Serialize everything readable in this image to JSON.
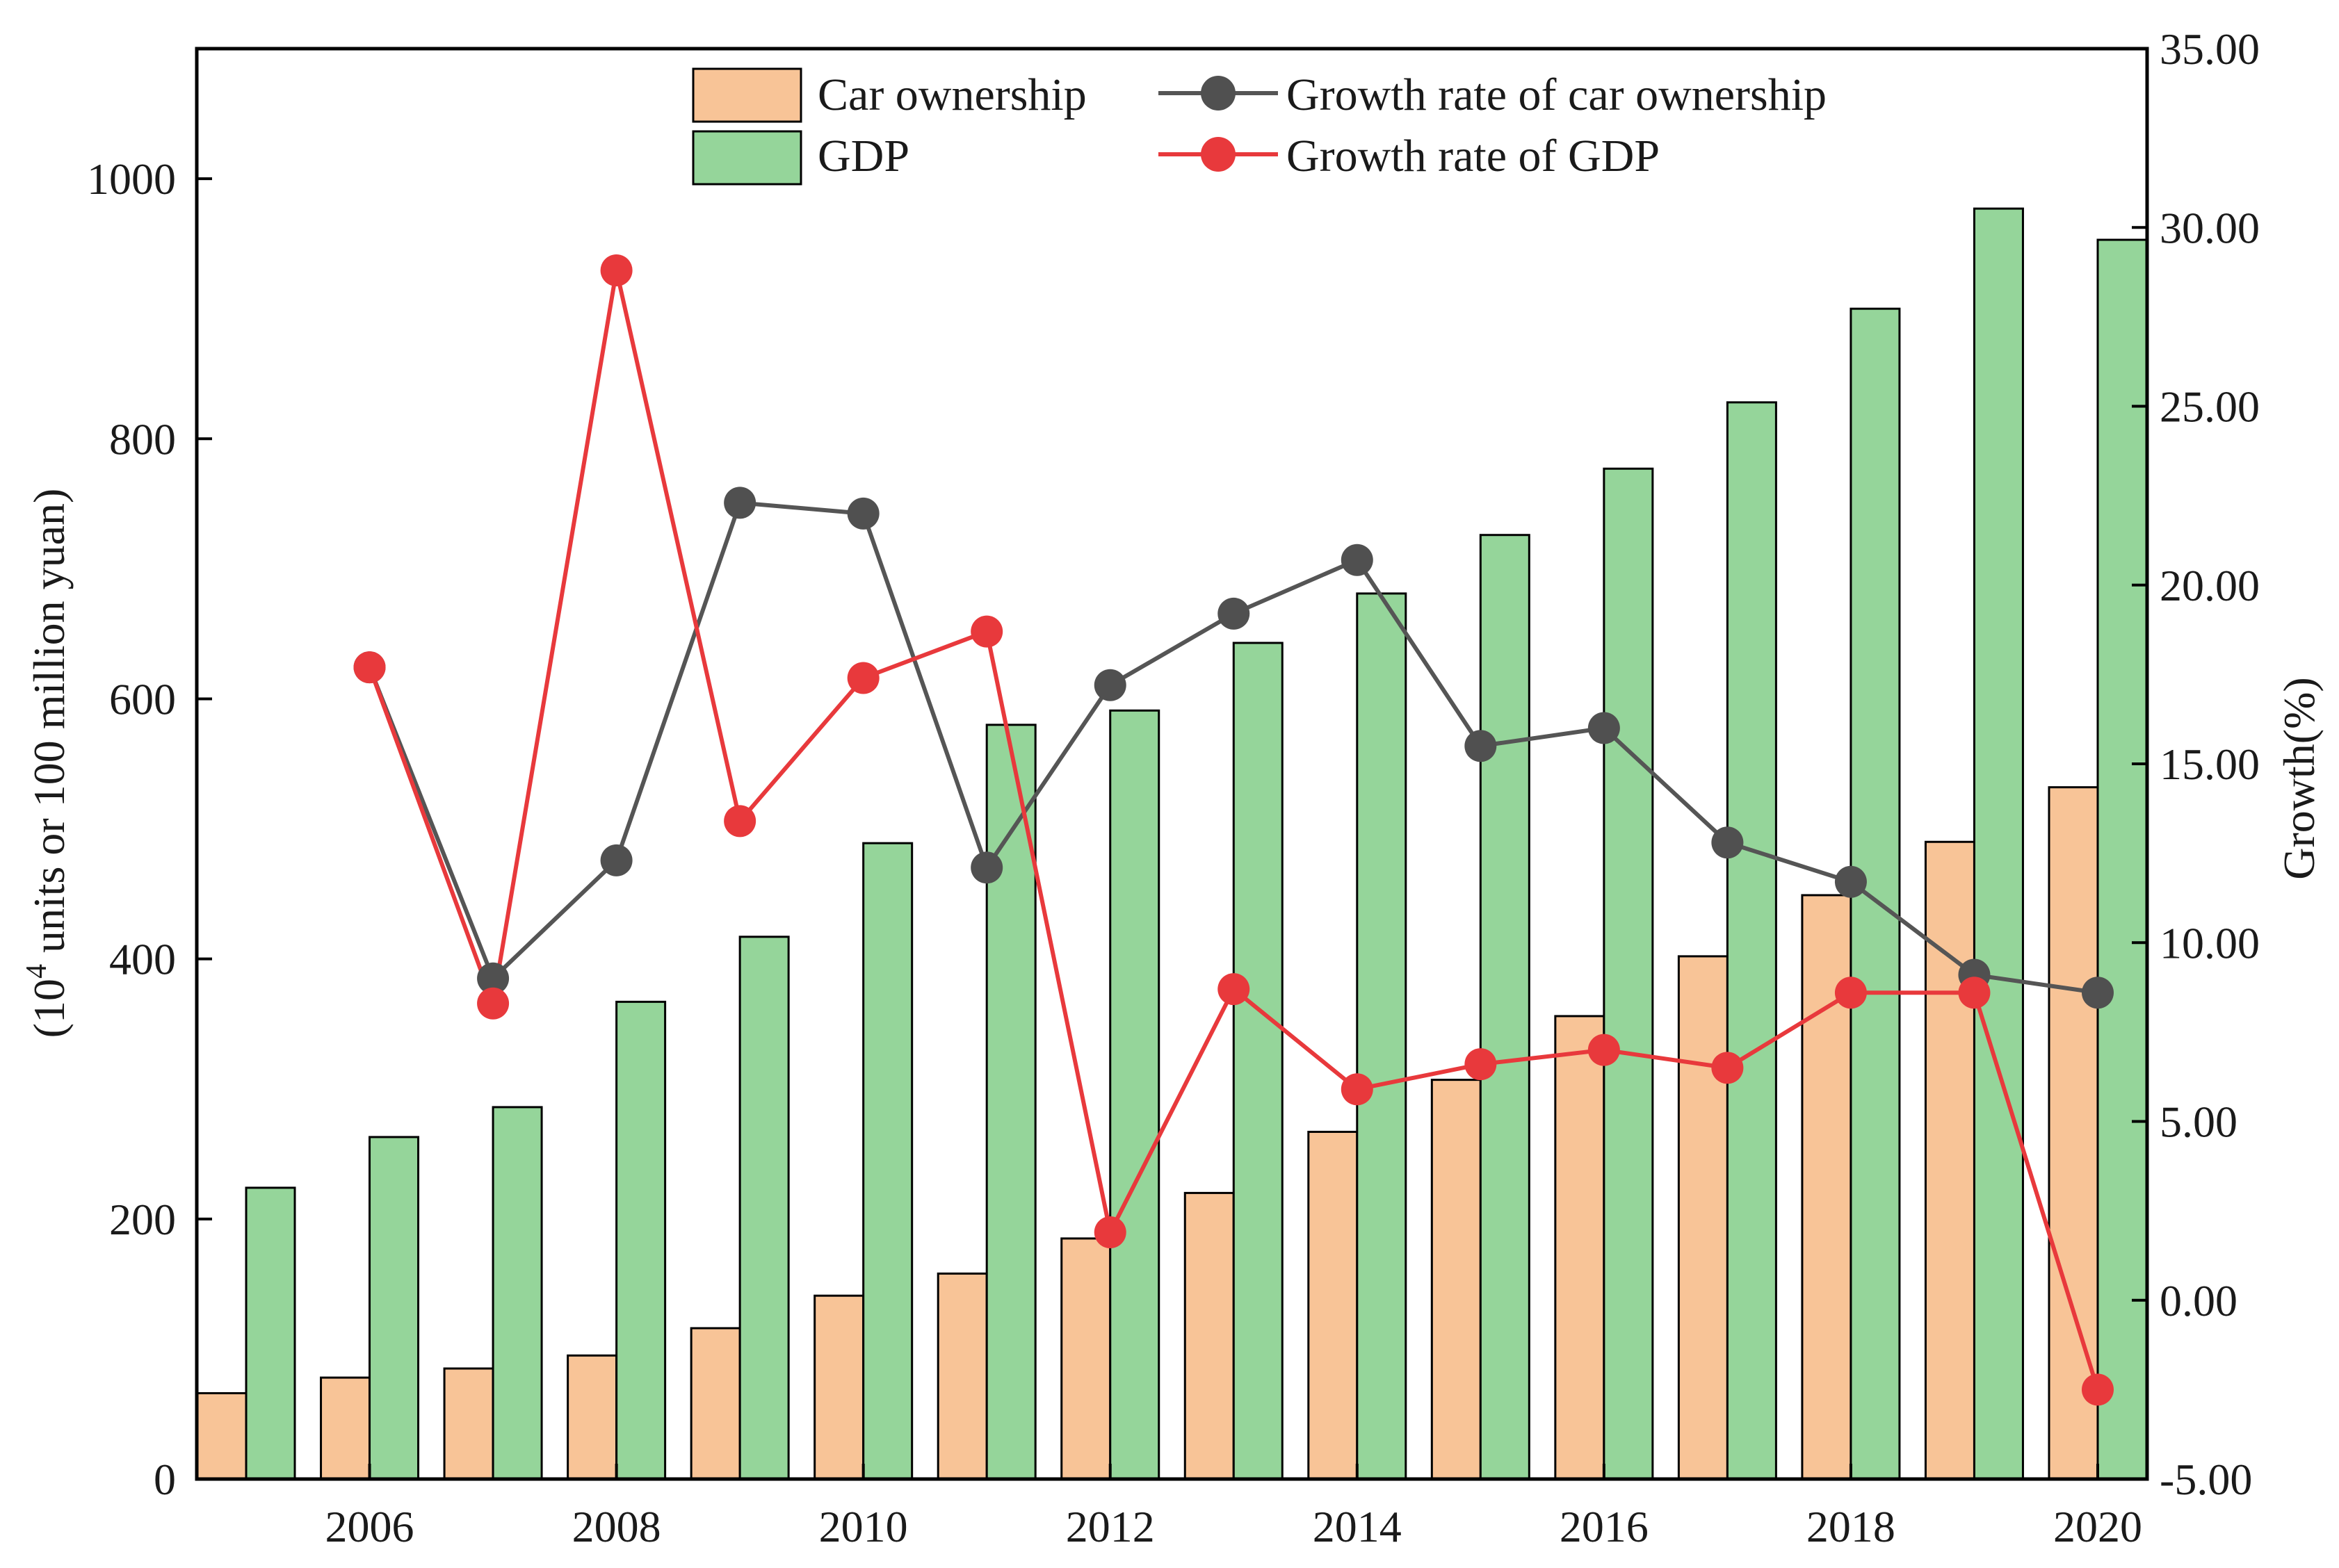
{
  "chart_data": {
    "type": "bar+line",
    "categories": [
      2005,
      2006,
      2007,
      2008,
      2009,
      2010,
      2011,
      2012,
      2013,
      2014,
      2015,
      2016,
      2017,
      2018,
      2019,
      2020
    ],
    "x_tick_labels": [
      "2006",
      "2008",
      "2010",
      "2012",
      "2014",
      "2016",
      "2018",
      "2020"
    ],
    "x_tick_values": [
      2006,
      2008,
      2010,
      2012,
      2014,
      2016,
      2018,
      2020
    ],
    "left_axis": {
      "label_base": "(10",
      "label_sup": "4",
      "label_rest": " units or 100 million yuan)",
      "range": [
        0,
        1100
      ],
      "ticks": [
        0,
        200,
        400,
        600,
        800,
        1000
      ],
      "tick_labels": [
        "0",
        "200",
        "400",
        "600",
        "800",
        "1000"
      ]
    },
    "right_axis": {
      "label": "Growth(%)",
      "range": [
        -5,
        35
      ],
      "ticks": [
        -5,
        0,
        5,
        10,
        15,
        20,
        25,
        30,
        35
      ],
      "tick_labels": [
        "-5.00",
        "0.00",
        "5.00",
        "10.00",
        "15.00",
        "20.00",
        "25.00",
        "30.00",
        "35.00"
      ]
    },
    "bar_series": [
      {
        "name": "Car ownership",
        "color": "#f8c497",
        "values": [
          66,
          78,
          85,
          95,
          116,
          141,
          158,
          185,
          220,
          267,
          307,
          356,
          402,
          449,
          490,
          532
        ]
      },
      {
        "name": "GDP",
        "color": "#95d59a",
        "values": [
          224,
          263,
          286,
          367,
          417,
          489,
          580,
          591,
          643,
          681,
          726,
          777,
          828,
          900,
          977,
          953
        ]
      }
    ],
    "line_series": [
      {
        "name": "Growth rate of car ownership",
        "color": "#555555",
        "axis": "right",
        "x": [
          2006,
          2007,
          2008,
          2009,
          2010,
          2011,
          2012,
          2013,
          2014,
          2015,
          2016,
          2017,
          2018,
          2019,
          2020
        ],
        "values": [
          17.7,
          9.0,
          12.3,
          22.3,
          22.0,
          12.1,
          17.2,
          19.2,
          20.7,
          15.5,
          16.0,
          12.8,
          11.7,
          9.1,
          8.6
        ]
      },
      {
        "name": "Growth rate of GDP",
        "color": "#e8393c",
        "axis": "right",
        "x": [
          2006,
          2007,
          2008,
          2009,
          2010,
          2011,
          2012,
          2013,
          2014,
          2015,
          2016,
          2017,
          2018,
          2019,
          2020
        ],
        "values": [
          17.7,
          8.3,
          28.8,
          13.4,
          17.4,
          18.7,
          1.9,
          8.7,
          5.9,
          6.6,
          7.0,
          6.5,
          8.6,
          8.6,
          -2.5
        ]
      }
    ],
    "legend": {
      "position": "top-center",
      "entries": [
        "Car ownership",
        "GDP",
        "Growth rate of car ownership",
        "Growth rate of GDP"
      ]
    },
    "title": "",
    "grid": false
  }
}
